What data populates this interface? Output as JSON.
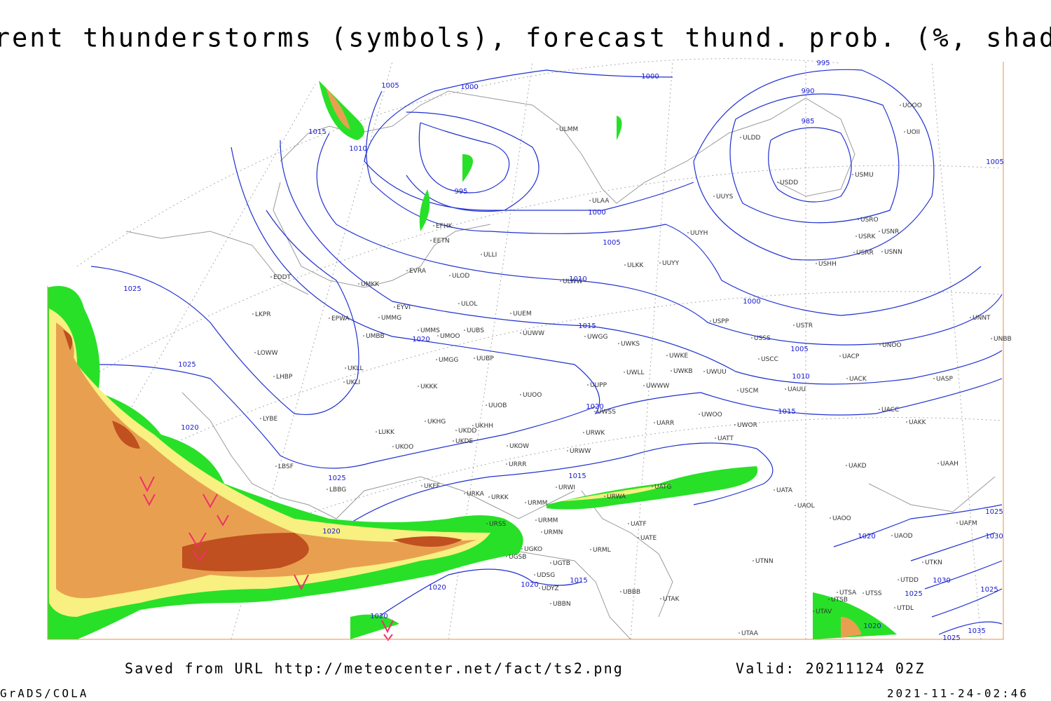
{
  "header": {
    "title": "Current thunderstorms (symbols), forecast thund. prob. (%, shaded)"
  },
  "footer": {
    "source": "Saved from URL http://meteocenter.net/fact/ts2.png",
    "valid": "Valid: 20211124 02Z",
    "software": "GrADS/COLA",
    "timestamp": "2021-11-24-02:46"
  },
  "isobar_labels": [
    "1005",
    "1000",
    "1000",
    "995",
    "990",
    "985",
    "1015",
    "1010",
    "995",
    "1000",
    "1005",
    "1010",
    "1000",
    "1015",
    "1020",
    "1005",
    "1010",
    "1025",
    "1025",
    "1020",
    "1020",
    "1015",
    "1025",
    "1015",
    "1020",
    "1020",
    "1020",
    "1020",
    "1015",
    "1020",
    "1020",
    "1025",
    "1030",
    "1030",
    "1025",
    "1025",
    "1035",
    "1025",
    "1005"
  ],
  "stations": [
    "ULMM",
    "ULAA",
    "ULDD",
    "USDD",
    "USMU",
    "UUYS",
    "UUYH",
    "UUYY",
    "USRO",
    "USNR",
    "USRK",
    "USRR",
    "USNN",
    "USHH",
    "UOOO",
    "UOII",
    "EFHK",
    "EETN",
    "ULLI",
    "ULKK",
    "EVRA",
    "ULOD",
    "ULWW",
    "EDDT",
    "UMKK",
    "EYVI",
    "ULOL",
    "UUEM",
    "EPWA",
    "UMMG",
    "UMMS",
    "UMOO",
    "UUBS",
    "UUWW",
    "UWGG",
    "UWKS",
    "USPP",
    "USTR",
    "UNNT",
    "UNBB",
    "USSS",
    "UNOO",
    "LKPR",
    "UMBB",
    "LOWW",
    "UUBP",
    "UMGG",
    "UWKE",
    "UWKB",
    "UWUU",
    "USCC",
    "UACP",
    "UKLL",
    "UKLI",
    "LHBP",
    "UWLL",
    "UWWW",
    "USCM",
    "UAUU",
    "UACK",
    "UASP",
    "UKKK",
    "UUPP",
    "UUOO",
    "UUOB",
    "UWSS",
    "LYBE",
    "UARR",
    "UWOO",
    "UWOR",
    "UACC",
    "UAKK",
    "UKHH",
    "UKHG",
    "UKDD",
    "LUKK",
    "UKDE",
    "URWK",
    "UATT",
    "UKOO",
    "UKOW",
    "URWW",
    "URRR",
    "LBSF",
    "UAKD",
    "UAAH",
    "UKFF",
    "URWI",
    "UATG",
    "LBBG",
    "URKA",
    "URKK",
    "URMM",
    "URWA",
    "UATA",
    "UAOL",
    "UAOO",
    "UAFM",
    "URSS",
    "URMM",
    "URMN",
    "UATE",
    "UATF",
    "UAOD",
    "UGKO",
    "UGSB",
    "URML",
    "UGTB",
    "UTNN",
    "UTKN",
    "UTDD",
    "UDSG",
    "UDYZ",
    "UBBN",
    "UBBB",
    "UTAK",
    "UTSA",
    "UTSS",
    "UTSB",
    "UTAV",
    "UTAA",
    "UTDL"
  ]
}
